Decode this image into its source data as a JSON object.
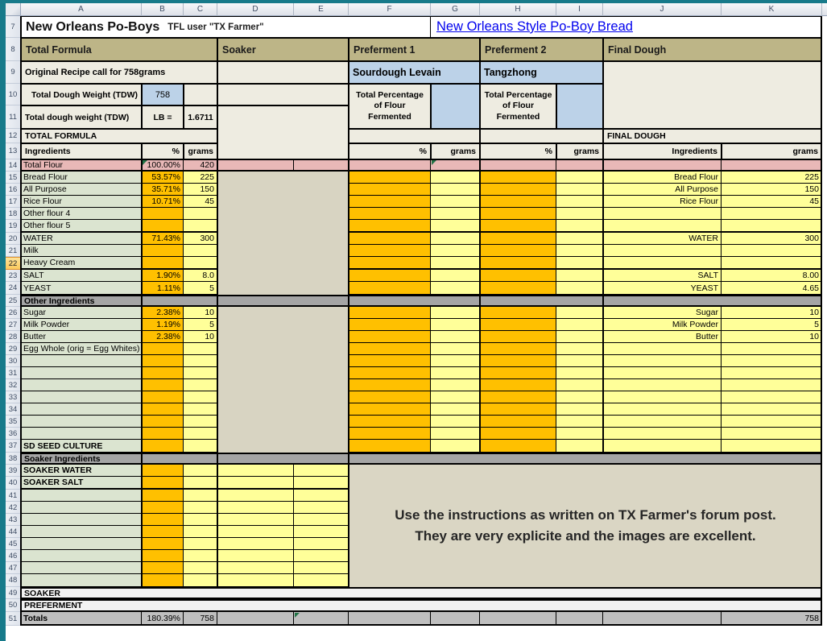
{
  "sheet": {
    "title": "New Orleans Po-Boys",
    "subtitle": "TFL user \"TX Farmer\"",
    "link": "New Orleans Style Po-Boy Bread",
    "column_letters": [
      "A",
      "B",
      "C",
      "D",
      "E",
      "F",
      "G",
      "H",
      "I",
      "J",
      "K"
    ],
    "row_numbers": [
      7,
      8,
      9,
      10,
      11,
      12,
      13,
      14,
      15,
      16,
      17,
      18,
      19,
      20,
      21,
      22,
      23,
      24,
      25,
      26,
      27,
      28,
      29,
      30,
      31,
      32,
      33,
      34,
      35,
      36,
      37,
      38,
      39,
      40,
      41,
      42,
      43,
      44,
      45,
      46,
      47,
      48,
      49,
      50,
      51
    ],
    "selected_row": 22
  },
  "headers": {
    "total_formula": "Total Formula",
    "soaker": "Soaker",
    "preferment1": "Preferment 1",
    "preferment2": "Preferment 2",
    "final_dough": "Final Dough",
    "original_recipe": "Original Recipe call for 758grams",
    "tdw_label": "Total Dough Weight (TDW)",
    "tdw_value": "758",
    "lb_label": "Total dough weight (TDW)",
    "lb_unit": "LB =",
    "lb_value": "1.6711",
    "total_formula_caps": "TOTAL FORMULA",
    "final_dough_caps": "FINAL DOUGH",
    "sourdough_levain": "Sourdough Levain",
    "tangzhong": "Tangzhong",
    "pct_flour_fermented": "Total Percentage of Flour Fermented",
    "ingredients": "Ingredients",
    "pct": "%",
    "grams": "grams"
  },
  "note": {
    "line1": "Use the instructions as written on TX Farmer's forum post.",
    "line2": "They are very explicite and the images are excellent."
  },
  "table": {
    "rows": [
      {
        "num": 14,
        "type": "total",
        "label": "Total Flour",
        "pct": "100.00%",
        "grams": "420"
      },
      {
        "num": 15,
        "type": "main",
        "label": "Bread Flour",
        "pct": "53.57%",
        "grams": "225",
        "fd_label": "Bread Flour",
        "fd_grams": "225"
      },
      {
        "num": 16,
        "type": "main",
        "label": "All Purpose",
        "pct": "35.71%",
        "grams": "150",
        "fd_label": "All Purpose",
        "fd_grams": "150"
      },
      {
        "num": 17,
        "type": "main",
        "label": "Rice Flour",
        "pct": "10.71%",
        "grams": "45",
        "fd_label": "Rice Flour",
        "fd_grams": "45"
      },
      {
        "num": 18,
        "type": "main",
        "label": "Other flour 4"
      },
      {
        "num": 19,
        "type": "main",
        "label": "Other flour 5",
        "group_end": true
      },
      {
        "num": 20,
        "type": "main",
        "label": "WATER",
        "pct": "71.43%",
        "grams": "300",
        "fd_label": "WATER",
        "fd_grams": "300"
      },
      {
        "num": 21,
        "type": "main",
        "label": "Milk"
      },
      {
        "num": 22,
        "type": "main",
        "label": "Heavy Cream",
        "group_end": true
      },
      {
        "num": 23,
        "type": "main",
        "label": "SALT",
        "pct": "1.90%",
        "grams": "8.0",
        "fd_label": "SALT",
        "fd_grams": "8.00"
      },
      {
        "num": 24,
        "type": "main",
        "label": "YEAST",
        "pct": "1.11%",
        "grams": "5",
        "fd_label": "YEAST",
        "fd_grams": "4.65"
      },
      {
        "num": 25,
        "type": "divider",
        "label": "Other Ingredients"
      },
      {
        "num": 26,
        "type": "main",
        "label": "Sugar",
        "pct": "2.38%",
        "grams": "10",
        "fd_label": "Sugar",
        "fd_grams": "10"
      },
      {
        "num": 27,
        "type": "main",
        "label": "Milk Powder",
        "pct": "1.19%",
        "grams": "5",
        "fd_label": "Milk Powder",
        "fd_grams": "5"
      },
      {
        "num": 28,
        "type": "main",
        "label": "Butter",
        "pct": "2.38%",
        "grams": "10",
        "fd_label": "Butter",
        "fd_grams": "10"
      },
      {
        "num": 29,
        "type": "main",
        "label": "Egg Whole (orig = Egg Whites)"
      },
      {
        "num": 30,
        "type": "main",
        "label": ""
      },
      {
        "num": 31,
        "type": "main",
        "label": ""
      },
      {
        "num": 32,
        "type": "main",
        "label": ""
      },
      {
        "num": 33,
        "type": "main",
        "label": ""
      },
      {
        "num": 34,
        "type": "main",
        "label": ""
      },
      {
        "num": 35,
        "type": "main",
        "label": ""
      },
      {
        "num": 36,
        "type": "main",
        "label": ""
      },
      {
        "num": 37,
        "type": "main",
        "label": "SD SEED CULTURE",
        "bold": true
      },
      {
        "num": 38,
        "type": "divider",
        "label": "Soaker Ingredients"
      },
      {
        "num": 39,
        "type": "soaker",
        "label": "SOAKER WATER",
        "bold": true
      },
      {
        "num": 40,
        "type": "soaker",
        "label": "SOAKER SALT",
        "bold": true,
        "group_end": true
      },
      {
        "num": 41,
        "type": "soaker",
        "label": ""
      },
      {
        "num": 42,
        "type": "soaker",
        "label": ""
      },
      {
        "num": 43,
        "type": "soaker",
        "label": ""
      },
      {
        "num": 44,
        "type": "soaker",
        "label": ""
      },
      {
        "num": 45,
        "type": "soaker",
        "label": ""
      },
      {
        "num": 46,
        "type": "soaker",
        "label": ""
      },
      {
        "num": 47,
        "type": "soaker",
        "label": ""
      },
      {
        "num": 48,
        "type": "soaker",
        "label": ""
      },
      {
        "num": 49,
        "type": "band",
        "label": "SOAKER"
      },
      {
        "num": 50,
        "type": "band",
        "label": "PREFERMENT"
      },
      {
        "num": 51,
        "type": "totals",
        "label": "Totals",
        "pct": "180.39%",
        "grams": "758",
        "fd_grams": "758"
      }
    ]
  },
  "colors": {
    "accent_orange": "#FFC000",
    "cell_yellow": "#FFFF99",
    "header_tan": "#BDB587",
    "row_pink": "#E8B8B7",
    "cell_blue": "#BCD2E8",
    "cell_green": "#DBE4D0",
    "link_blue": "#0000EE"
  }
}
